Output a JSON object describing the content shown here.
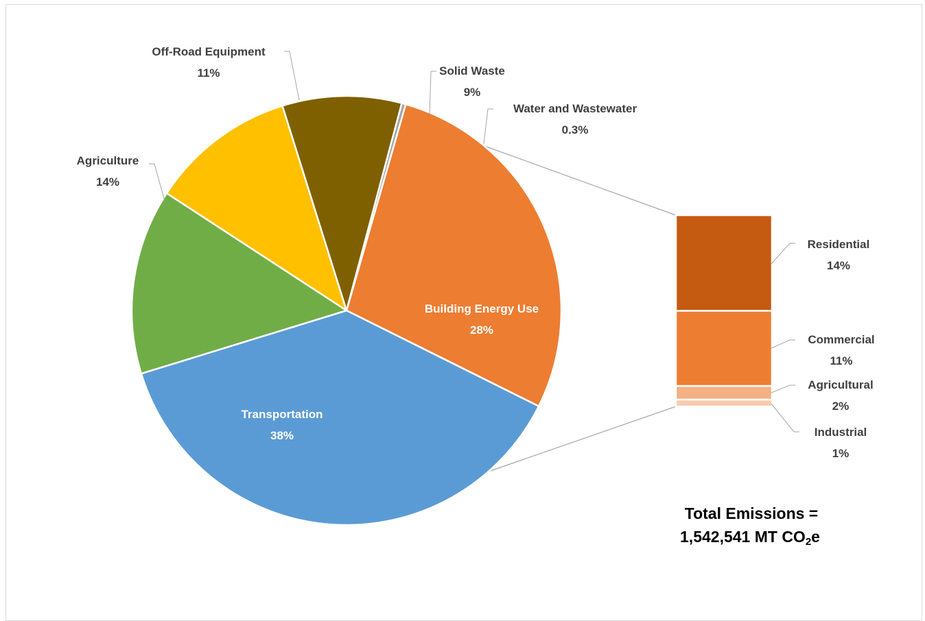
{
  "chart_data": {
    "type": "bar-of-pie",
    "pie": [
      {
        "name": "Building Energy Use",
        "value": 28,
        "label": "28%",
        "color": "#ED7D31"
      },
      {
        "name": "Transportation",
        "value": 38,
        "label": "38%",
        "color": "#5B9BD5"
      },
      {
        "name": "Agriculture",
        "value": 14,
        "label": "14%",
        "color": "#70AD47"
      },
      {
        "name": "Off-Road Equipment",
        "value": 11,
        "label": "11%",
        "color": "#FFC000"
      },
      {
        "name": "Solid Waste",
        "value": 9,
        "label": "9%",
        "color": "#7F6000"
      },
      {
        "name": "Water and Wastewater",
        "value": 0.3,
        "label": "0.3%",
        "color": "#A5A5A5"
      }
    ],
    "breakdown": [
      {
        "name": "Residential",
        "value": 14,
        "label": "14%",
        "color": "#C55A11"
      },
      {
        "name": "Commercial",
        "value": 11,
        "label": "11%",
        "color": "#ED7D31"
      },
      {
        "name": "Agricultural",
        "value": 2,
        "label": "2%",
        "color": "#F4B183"
      },
      {
        "name": "Industrial",
        "value": 1,
        "label": "1%",
        "color": "#F8CBAD"
      }
    ],
    "total_line1": "Total Emissions =",
    "total_line2_prefix": "1,542,541 MT CO",
    "total_line2_sub": "2",
    "total_line2_suffix": "e"
  }
}
